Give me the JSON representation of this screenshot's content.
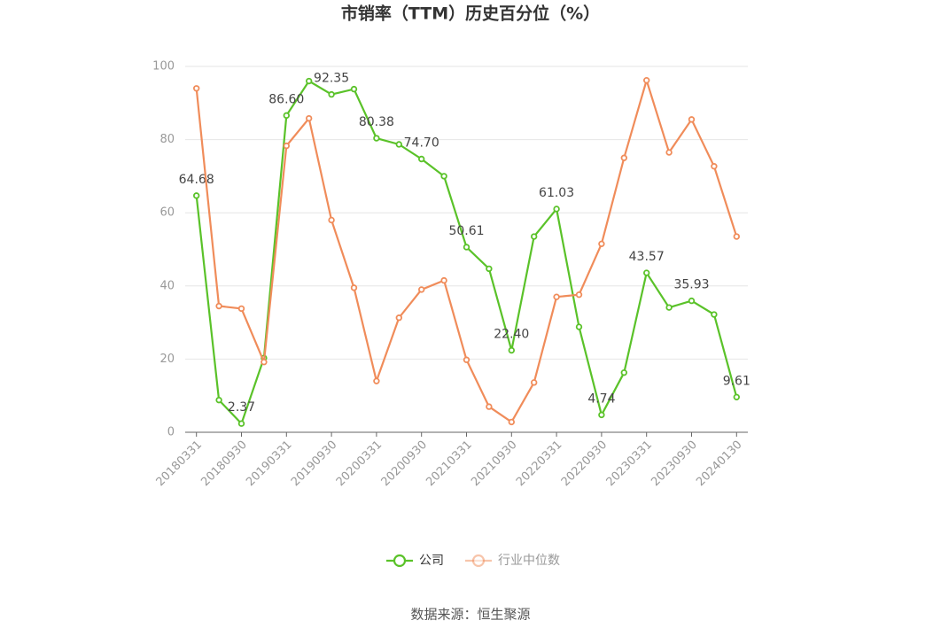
{
  "chart_data": {
    "type": "line",
    "title": "市销率（TTM）历史百分位（%）",
    "source": "数据来源：恒生聚源",
    "categories": [
      "20180331",
      null,
      "20180930",
      null,
      "20190331",
      null,
      "20190930",
      null,
      "20200331",
      null,
      "20200930",
      null,
      "20210331",
      null,
      "20210930",
      null,
      "20220331",
      null,
      "20220930",
      null,
      "20230331",
      null,
      "20230930",
      null,
      "20240130"
    ],
    "series": [
      {
        "name": "公司",
        "color": "#5ac229",
        "values": [
          64.68,
          8.8,
          2.37,
          20.3,
          86.6,
          96,
          92.35,
          93.8,
          80.38,
          78.7,
          74.7,
          70,
          50.61,
          44.7,
          22.4,
          53.5,
          61.03,
          28.8,
          4.74,
          16.3,
          43.57,
          34.1,
          35.93,
          32.2,
          9.61
        ],
        "value_labels": [
          "64.68",
          null,
          "2.37",
          null,
          "86.60",
          null,
          "92.35",
          null,
          "80.38",
          null,
          "74.70",
          null,
          "50.61",
          null,
          "22.40",
          null,
          "61.03",
          null,
          "4.74",
          null,
          "43.57",
          null,
          "35.93",
          null,
          "9.61"
        ]
      },
      {
        "name": "行业中位数",
        "color": "#f08c5a",
        "values": [
          94,
          34.5,
          33.8,
          19.2,
          78.3,
          85.8,
          58,
          39.5,
          14,
          31.3,
          39,
          41.5,
          19.8,
          7,
          2.8,
          13.6,
          37,
          37.6,
          51.5,
          75,
          96.2,
          76.5,
          85.5,
          72.7,
          53.5
        ]
      }
    ],
    "ylim": [
      0,
      100
    ],
    "yticks": [
      0,
      20,
      40,
      60,
      80,
      100
    ],
    "grid": true
  }
}
